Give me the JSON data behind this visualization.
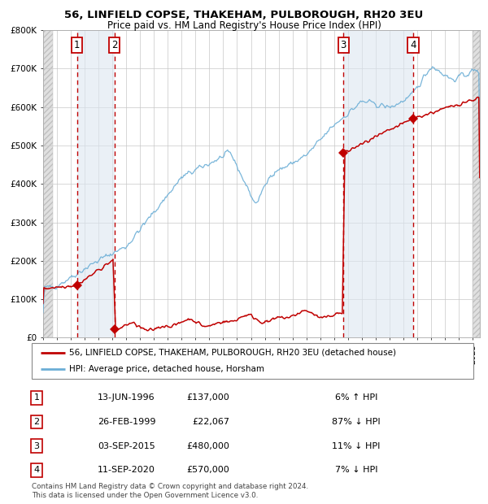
{
  "title": "56, LINFIELD COPSE, THAKEHAM, PULBOROUGH, RH20 3EU",
  "subtitle": "Price paid vs. HM Land Registry's House Price Index (HPI)",
  "x_start": 1994.0,
  "x_end": 2025.5,
  "y_min": 0,
  "y_max": 800000,
  "y_ticks": [
    0,
    100000,
    200000,
    300000,
    400000,
    500000,
    600000,
    700000,
    800000
  ],
  "y_tick_labels": [
    "£0",
    "£100K",
    "£200K",
    "£300K",
    "£400K",
    "£500K",
    "£600K",
    "£700K",
    "£800K"
  ],
  "x_ticks": [
    1994,
    1995,
    1996,
    1997,
    1998,
    1999,
    2000,
    2001,
    2002,
    2003,
    2004,
    2005,
    2006,
    2007,
    2008,
    2009,
    2010,
    2011,
    2012,
    2013,
    2014,
    2015,
    2016,
    2017,
    2018,
    2019,
    2020,
    2021,
    2022,
    2023,
    2024,
    2025
  ],
  "sales": [
    {
      "label": "1",
      "date": "13-JUN-1996",
      "year": 1996.45,
      "price": 137000,
      "hpi_pct": "6%",
      "direction": "↑"
    },
    {
      "label": "2",
      "date": "26-FEB-1999",
      "year": 1999.16,
      "price": 22067,
      "hpi_pct": "87%",
      "direction": "↓"
    },
    {
      "label": "3",
      "date": "03-SEP-2015",
      "year": 2015.67,
      "price": 480000,
      "hpi_pct": "11%",
      "direction": "↓"
    },
    {
      "label": "4",
      "date": "11-SEP-2020",
      "year": 2020.69,
      "price": 570000,
      "hpi_pct": "7%",
      "direction": "↓"
    }
  ],
  "hpi_color": "#6baed6",
  "price_color": "#c00000",
  "shade_color": "#dce6f1",
  "grid_color": "#c8c8c8",
  "legend_line1": "56, LINFIELD COPSE, THAKEHAM, PULBOROUGH, RH20 3EU (detached house)",
  "legend_line2": "HPI: Average price, detached house, Horsham",
  "footer": "Contains HM Land Registry data © Crown copyright and database right 2024.\nThis data is licensed under the Open Government Licence v3.0.",
  "table_rows": [
    {
      "num": "1",
      "date": "13-JUN-1996",
      "price": "£137,000",
      "hpi": "6% ↑ HPI"
    },
    {
      "num": "2",
      "date": "26-FEB-1999",
      "price": "£22,067",
      "hpi": "87% ↓ HPI"
    },
    {
      "num": "3",
      "date": "03-SEP-2015",
      "price": "£480,000",
      "hpi": "11% ↓ HPI"
    },
    {
      "num": "4",
      "date": "11-SEP-2020",
      "price": "£570,000",
      "hpi": "7% ↓ HPI"
    }
  ]
}
